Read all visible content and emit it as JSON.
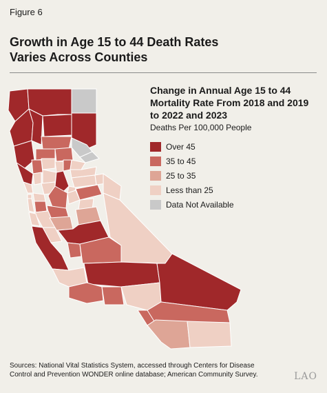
{
  "figure_label": "Figure 6",
  "title_line1": "Growth in Age 15 to 44 Death Rates",
  "title_line2": "Varies Across Counties",
  "legend": {
    "title_line1": "Change in Annual Age 15 to 44",
    "title_line2": "Mortality Rate From 2018 and 2019",
    "title_line3": "to 2022 and 2023",
    "subtitle": "Deaths Per 100,000 People",
    "items": [
      {
        "label": "Over 45",
        "color": "#a0282a"
      },
      {
        "label": "35 to 45",
        "color": "#c9685f"
      },
      {
        "label": "25 to 35",
        "color": "#dea596"
      },
      {
        "label": "Less than 25",
        "color": "#efd0c4"
      },
      {
        "label": "Data Not Available",
        "color": "#c9c9c9"
      }
    ]
  },
  "sources_line1": "Sources: National Vital Statistics System, accessed through Centers for Disease",
  "sources_line2": "Control and Prevention WONDER online database; American Community Survey.",
  "logo_text": "LAO"
}
